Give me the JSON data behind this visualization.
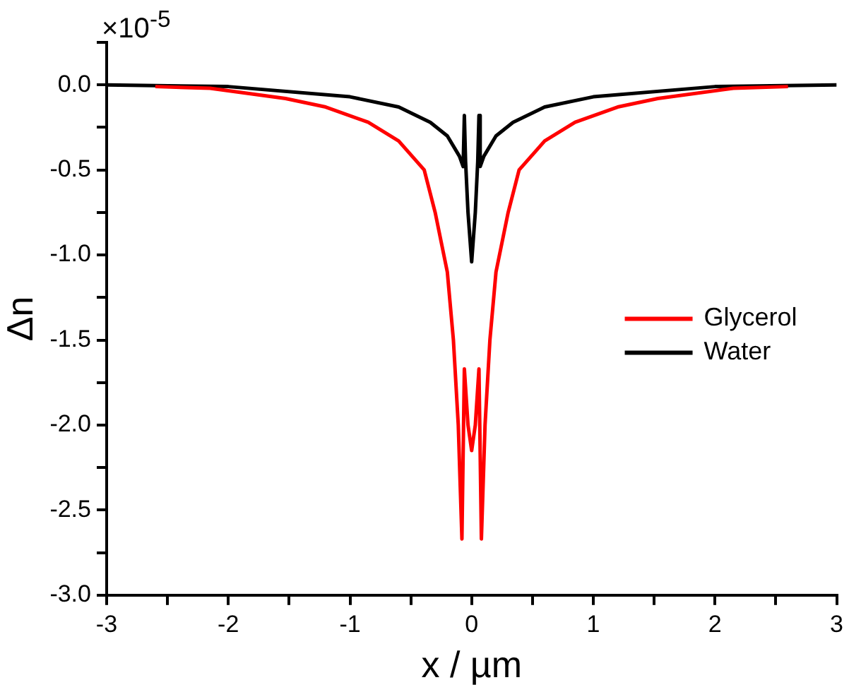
{
  "chart_data": {
    "type": "line",
    "xlabel": "x / µm",
    "ylabel": "Δn",
    "annotations": [
      "×10$^{-5}$"
    ],
    "xlim": [
      -3,
      3
    ],
    "ylim": [
      -3,
      0.25
    ],
    "xticks": [
      -3,
      {
        "value": -2.5,
        "label": null
      },
      -2,
      {
        "value": -1.5,
        "label": null
      },
      -1,
      {
        "value": -0.5,
        "label": null
      },
      0,
      {
        "value": 0.5,
        "label": null
      },
      1,
      {
        "value": 1.5,
        "label": null
      },
      2,
      {
        "value": 2.5,
        "label": null
      },
      3
    ],
    "yticks": [
      {
        "value": -3,
        "label": "-3.0"
      },
      {
        "value": -2.75,
        "label": null
      },
      {
        "value": -2.5,
        "label": "-2.5"
      },
      {
        "value": -2.25,
        "label": null
      },
      {
        "value": -2,
        "label": "-2.0"
      },
      {
        "value": -1.75,
        "label": null
      },
      {
        "value": -1.5,
        "label": "-1.5"
      },
      {
        "value": -1.25,
        "label": null
      },
      {
        "value": -1,
        "label": "-1.0"
      },
      {
        "value": -0.75,
        "label": null
      },
      {
        "value": -0.5,
        "label": "-0.5"
      },
      {
        "value": -0.25,
        "label": null
      },
      {
        "value": 0,
        "label": "0.0"
      },
      {
        "value": 0.25,
        "label": null
      }
    ],
    "grid": false,
    "legend": "right",
    "marker": "none",
    "line_style": "solid",
    "series": [
      {
        "name": "Glycerol",
        "color": "#ff0000",
        "x": [
          -2.6,
          -2.15,
          -1.53,
          -1.2,
          -0.85,
          -0.6,
          -0.39,
          -0.3,
          -0.2,
          -0.15,
          -0.11,
          -0.08,
          -0.06,
          -0.03,
          0,
          0.03,
          0.06,
          0.08,
          0.11,
          0.15,
          0.2,
          0.3,
          0.39,
          0.6,
          0.85,
          1.2,
          1.53,
          2.15,
          2.6
        ],
        "values": [
          -0.01,
          -0.02,
          -0.08,
          -0.13,
          -0.22,
          -0.33,
          -0.5,
          -0.75,
          -1.1,
          -1.5,
          -2.0,
          -2.67,
          -1.67,
          -2.0,
          -2.15,
          -2.0,
          -1.67,
          -2.67,
          -2.0,
          -1.5,
          -1.1,
          -0.75,
          -0.5,
          -0.33,
          -0.22,
          -0.13,
          -0.08,
          -0.02,
          -0.01
        ]
      },
      {
        "name": "Water",
        "color": "#000000",
        "x": [
          -3,
          -2,
          -1,
          -0.6,
          -0.34,
          -0.2,
          -0.1,
          -0.07,
          -0.06,
          -0.05,
          -0.03,
          0,
          0.03,
          0.05,
          0.06,
          0.07,
          0.1,
          0.2,
          0.34,
          0.6,
          1,
          2,
          3
        ],
        "values": [
          0,
          -0.01,
          -0.07,
          -0.13,
          -0.22,
          -0.3,
          -0.42,
          -0.48,
          -0.18,
          -0.45,
          -0.75,
          -1.04,
          -0.75,
          -0.45,
          -0.18,
          -0.48,
          -0.42,
          -0.3,
          -0.22,
          -0.13,
          -0.07,
          -0.01,
          0
        ]
      }
    ]
  }
}
